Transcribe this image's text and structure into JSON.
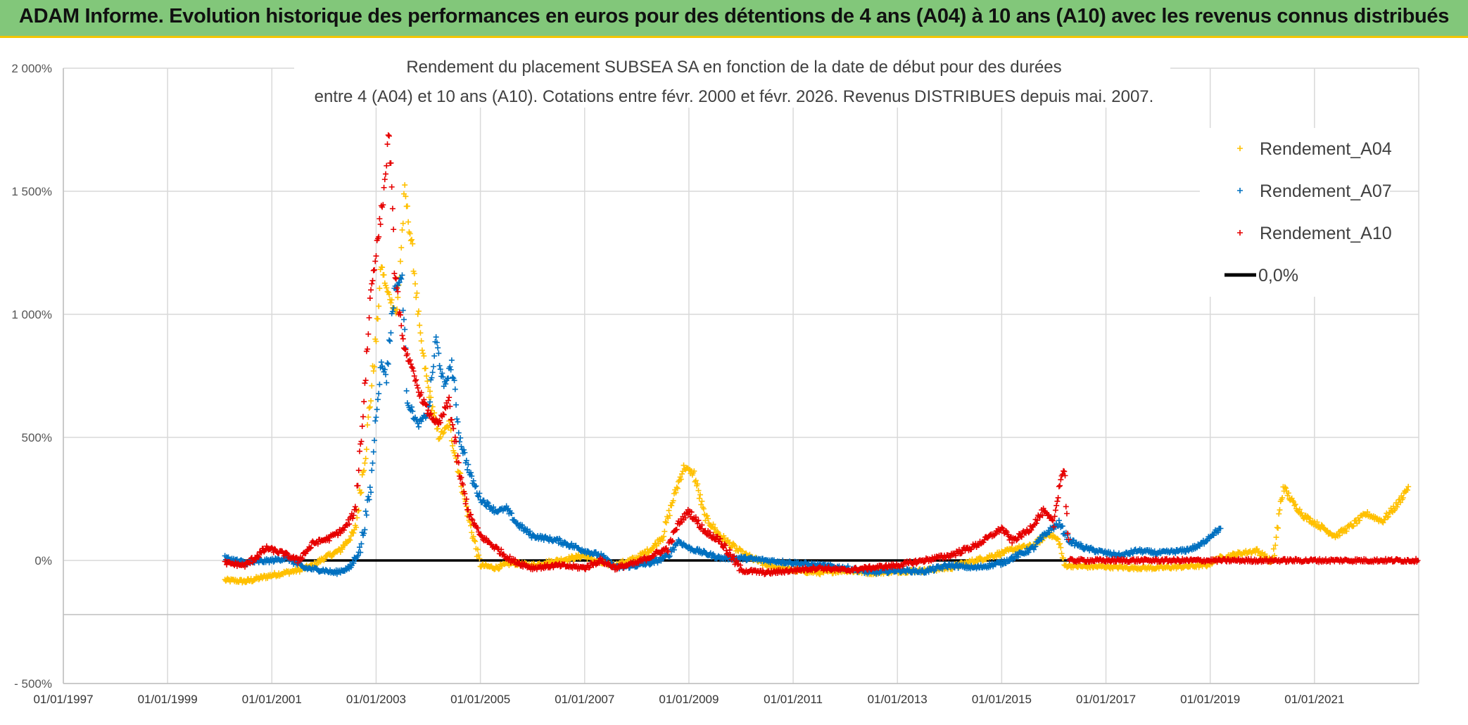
{
  "header": {
    "title": "ADAM Informe. Evolution historique des performances en euros pour des détentions de 4 ans (A04) à 10 ans (A10) avec les revenus connus distribués"
  },
  "chart_data": {
    "type": "scatter",
    "title_lines": [
      "Rendement du placement SUBSEA SA en fonction de la date de début pour des durées",
      "entre 4 (A04) et 10 ans (A10). Cotations entre févr. 2000 et févr. 2026. Revenus DISTRIBUES depuis mai. 2007."
    ],
    "xlim": [
      1997.0,
      2023.0
    ],
    "ylim": [
      -500,
      2000
    ],
    "x_ticks": [
      1997,
      1999,
      2001,
      2003,
      2005,
      2007,
      2009,
      2011,
      2013,
      2015,
      2017,
      2019,
      2021
    ],
    "x_tick_labels": [
      "01/01/1997",
      "01/01/1999",
      "01/01/2001",
      "01/01/2003",
      "01/01/2005",
      "01/01/2007",
      "01/01/2009",
      "01/01/2011",
      "01/01/2013",
      "01/01/2015",
      "01/01/2017",
      "01/01/2019",
      "01/01/2021"
    ],
    "y_ticks": [
      -500,
      0,
      500,
      1000,
      1500,
      2000
    ],
    "y_tick_labels": [
      "- 500%",
      "0%",
      "500%",
      "1 000%",
      "1 500%",
      "2 000%"
    ],
    "grid": true,
    "legend_position": "top-right",
    "series": [
      {
        "name": "Rendement_A04",
        "color": "#ffc000",
        "marker": "plus",
        "points": [
          [
            2000.1,
            -80
          ],
          [
            2000.5,
            -85
          ],
          [
            2001.0,
            -60
          ],
          [
            2001.5,
            -40
          ],
          [
            2001.8,
            -20
          ],
          [
            2002.0,
            10
          ],
          [
            2002.3,
            40
          ],
          [
            2002.6,
            120
          ],
          [
            2002.8,
            450
          ],
          [
            2003.0,
            900
          ],
          [
            2003.1,
            1200
          ],
          [
            2003.2,
            1100
          ],
          [
            2003.4,
            1000
          ],
          [
            2003.55,
            1500
          ],
          [
            2003.7,
            1250
          ],
          [
            2003.85,
            900
          ],
          [
            2004.0,
            700
          ],
          [
            2004.2,
            500
          ],
          [
            2004.4,
            550
          ],
          [
            2004.6,
            350
          ],
          [
            2004.8,
            150
          ],
          [
            2005.0,
            -20
          ],
          [
            2005.3,
            -30
          ],
          [
            2005.6,
            -10
          ],
          [
            2006.0,
            -20
          ],
          [
            2006.5,
            0
          ],
          [
            2007.0,
            20
          ],
          [
            2007.3,
            -10
          ],
          [
            2007.6,
            -20
          ],
          [
            2008.0,
            10
          ],
          [
            2008.3,
            50
          ],
          [
            2008.5,
            100
          ],
          [
            2008.7,
            250
          ],
          [
            2008.9,
            380
          ],
          [
            2009.1,
            350
          ],
          [
            2009.3,
            180
          ],
          [
            2009.6,
            100
          ],
          [
            2010.0,
            30
          ],
          [
            2010.5,
            -20
          ],
          [
            2011.0,
            -40
          ],
          [
            2011.5,
            -50
          ],
          [
            2012.0,
            -40
          ],
          [
            2012.5,
            -50
          ],
          [
            2013.0,
            -45
          ],
          [
            2013.5,
            -40
          ],
          [
            2014.0,
            -30
          ],
          [
            2014.5,
            0
          ],
          [
            2015.0,
            30
          ],
          [
            2015.3,
            50
          ],
          [
            2015.6,
            60
          ],
          [
            2015.9,
            110
          ],
          [
            2016.1,
            80
          ],
          [
            2016.2,
            -20
          ],
          [
            2016.6,
            -25
          ],
          [
            2017.0,
            -25
          ],
          [
            2017.5,
            -30
          ],
          [
            2018.0,
            -30
          ],
          [
            2018.5,
            -25
          ],
          [
            2018.9,
            -20
          ],
          [
            2019.2,
            10
          ],
          [
            2019.6,
            30
          ],
          [
            2019.9,
            40
          ],
          [
            2020.2,
            -10
          ],
          [
            2020.4,
            300
          ],
          [
            2020.6,
            230
          ],
          [
            2020.8,
            180
          ],
          [
            2021.1,
            140
          ],
          [
            2021.4,
            100
          ],
          [
            2021.7,
            140
          ],
          [
            2022.0,
            190
          ],
          [
            2022.3,
            160
          ],
          [
            2022.6,
            230
          ],
          [
            2022.8,
            300
          ]
        ]
      },
      {
        "name": "Rendement_A07",
        "color": "#0070c0",
        "marker": "plus",
        "points": [
          [
            2000.1,
            10
          ],
          [
            2000.5,
            -10
          ],
          [
            2001.0,
            0
          ],
          [
            2001.3,
            10
          ],
          [
            2001.6,
            -30
          ],
          [
            2002.0,
            -40
          ],
          [
            2002.2,
            -50
          ],
          [
            2002.5,
            -30
          ],
          [
            2002.7,
            50
          ],
          [
            2002.9,
            300
          ],
          [
            2003.0,
            600
          ],
          [
            2003.1,
            800
          ],
          [
            2003.2,
            750
          ],
          [
            2003.35,
            1100
          ],
          [
            2003.5,
            1150
          ],
          [
            2003.6,
            650
          ],
          [
            2003.8,
            550
          ],
          [
            2004.0,
            600
          ],
          [
            2004.15,
            900
          ],
          [
            2004.3,
            700
          ],
          [
            2004.45,
            800
          ],
          [
            2004.6,
            500
          ],
          [
            2004.8,
            350
          ],
          [
            2005.0,
            250
          ],
          [
            2005.3,
            200
          ],
          [
            2005.5,
            210
          ],
          [
            2005.7,
            150
          ],
          [
            2006.0,
            100
          ],
          [
            2006.5,
            80
          ],
          [
            2007.0,
            40
          ],
          [
            2007.3,
            20
          ],
          [
            2007.6,
            -30
          ],
          [
            2008.0,
            -20
          ],
          [
            2008.3,
            -10
          ],
          [
            2008.6,
            20
          ],
          [
            2008.8,
            80
          ],
          [
            2009.0,
            50
          ],
          [
            2009.3,
            30
          ],
          [
            2009.6,
            10
          ],
          [
            2010.0,
            10
          ],
          [
            2010.5,
            0
          ],
          [
            2011.0,
            -10
          ],
          [
            2011.5,
            -20
          ],
          [
            2012.0,
            -30
          ],
          [
            2012.5,
            -50
          ],
          [
            2013.0,
            -40
          ],
          [
            2013.5,
            -45
          ],
          [
            2014.0,
            -20
          ],
          [
            2014.5,
            -30
          ],
          [
            2015.0,
            -10
          ],
          [
            2015.3,
            20
          ],
          [
            2015.6,
            50
          ],
          [
            2015.9,
            120
          ],
          [
            2016.1,
            150
          ],
          [
            2016.3,
            80
          ],
          [
            2016.6,
            50
          ],
          [
            2017.0,
            30
          ],
          [
            2017.3,
            20
          ],
          [
            2017.6,
            40
          ],
          [
            2018.0,
            30
          ],
          [
            2018.5,
            40
          ],
          [
            2018.8,
            60
          ],
          [
            2019.0,
            100
          ],
          [
            2019.2,
            130
          ]
        ]
      },
      {
        "name": "Rendement_A10",
        "color": "#e60000",
        "marker": "plus",
        "points": [
          [
            2000.1,
            -10
          ],
          [
            2000.5,
            -20
          ],
          [
            2000.9,
            50
          ],
          [
            2001.2,
            30
          ],
          [
            2001.5,
            0
          ],
          [
            2001.8,
            70
          ],
          [
            2002.1,
            90
          ],
          [
            2002.4,
            130
          ],
          [
            2002.6,
            200
          ],
          [
            2002.75,
            600
          ],
          [
            2002.9,
            1100
          ],
          [
            2003.0,
            1250
          ],
          [
            2003.15,
            1500
          ],
          [
            2003.25,
            1750
          ],
          [
            2003.35,
            1200
          ],
          [
            2003.5,
            900
          ],
          [
            2003.65,
            800
          ],
          [
            2003.8,
            700
          ],
          [
            2004.0,
            600
          ],
          [
            2004.2,
            550
          ],
          [
            2004.4,
            650
          ],
          [
            2004.6,
            350
          ],
          [
            2004.8,
            180
          ],
          [
            2005.0,
            100
          ],
          [
            2005.3,
            50
          ],
          [
            2005.6,
            0
          ],
          [
            2006.0,
            -30
          ],
          [
            2006.5,
            -20
          ],
          [
            2007.0,
            -30
          ],
          [
            2007.3,
            0
          ],
          [
            2007.6,
            -30
          ],
          [
            2008.0,
            -10
          ],
          [
            2008.3,
            20
          ],
          [
            2008.6,
            50
          ],
          [
            2008.8,
            150
          ],
          [
            2009.0,
            200
          ],
          [
            2009.3,
            120
          ],
          [
            2009.6,
            80
          ],
          [
            2010.0,
            -40
          ],
          [
            2010.5,
            -50
          ],
          [
            2011.0,
            -40
          ],
          [
            2011.5,
            -30
          ],
          [
            2012.0,
            -40
          ],
          [
            2012.5,
            -30
          ],
          [
            2013.0,
            -20
          ],
          [
            2013.5,
            0
          ],
          [
            2014.0,
            20
          ],
          [
            2014.5,
            60
          ],
          [
            2014.8,
            100
          ],
          [
            2015.0,
            130
          ],
          [
            2015.2,
            80
          ],
          [
            2015.5,
            120
          ],
          [
            2015.8,
            200
          ],
          [
            2016.0,
            150
          ],
          [
            2016.1,
            300
          ],
          [
            2016.2,
            380
          ],
          [
            2016.3,
            0
          ],
          [
            2017.0,
            0
          ],
          [
            2018.0,
            0
          ],
          [
            2019.0,
            0
          ],
          [
            2020.0,
            0
          ],
          [
            2021.0,
            0
          ],
          [
            2022.0,
            0
          ],
          [
            2022.98,
            0
          ]
        ]
      }
    ],
    "reference_line": {
      "name": "0,0%",
      "y": 0,
      "color": "#000000"
    }
  }
}
